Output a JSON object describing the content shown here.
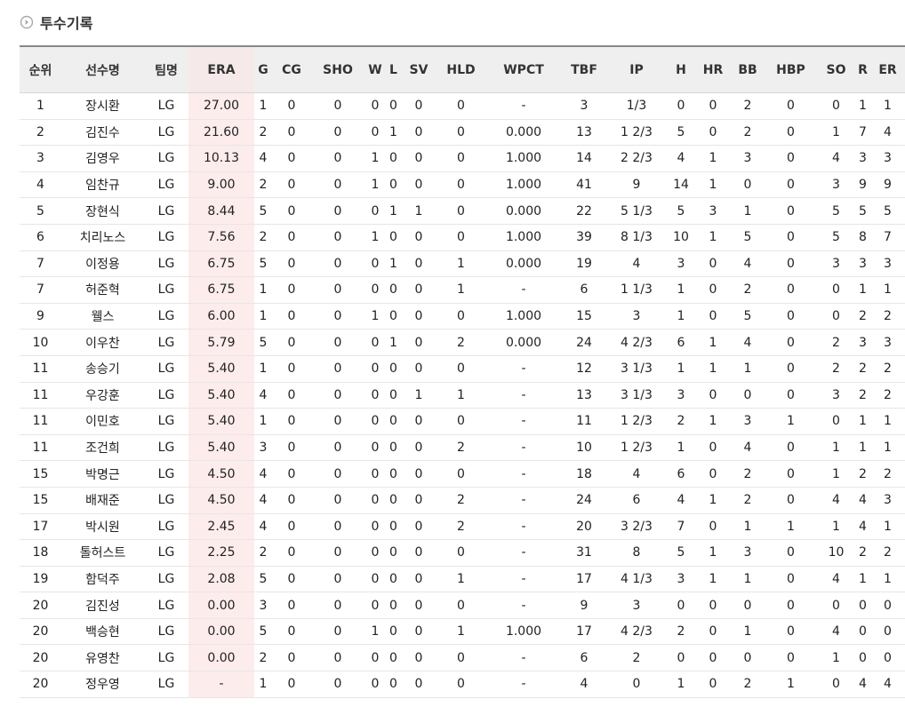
{
  "section_title": "투수기록",
  "table": {
    "columns": [
      "순위",
      "선수명",
      "팀명",
      "ERA",
      "G",
      "CG",
      "SHO",
      "W",
      "L",
      "SV",
      "HLD",
      "WPCT",
      "TBF",
      "IP",
      "H",
      "HR",
      "BB",
      "HBP",
      "SO",
      "R",
      "ER"
    ],
    "rows": [
      [
        "1",
        "장시환",
        "LG",
        "27.00",
        "1",
        "0",
        "0",
        "0",
        "0",
        "0",
        "0",
        "-",
        "3",
        "1/3",
        "0",
        "0",
        "2",
        "0",
        "0",
        "1",
        "1"
      ],
      [
        "2",
        "김진수",
        "LG",
        "21.60",
        "2",
        "0",
        "0",
        "0",
        "1",
        "0",
        "0",
        "0.000",
        "13",
        "1 2/3",
        "5",
        "0",
        "2",
        "0",
        "1",
        "7",
        "4"
      ],
      [
        "3",
        "김영우",
        "LG",
        "10.13",
        "4",
        "0",
        "0",
        "1",
        "0",
        "0",
        "0",
        "1.000",
        "14",
        "2 2/3",
        "4",
        "1",
        "3",
        "0",
        "4",
        "3",
        "3"
      ],
      [
        "4",
        "임찬규",
        "LG",
        "9.00",
        "2",
        "0",
        "0",
        "1",
        "0",
        "0",
        "0",
        "1.000",
        "41",
        "9",
        "14",
        "1",
        "0",
        "0",
        "3",
        "9",
        "9"
      ],
      [
        "5",
        "장현식",
        "LG",
        "8.44",
        "5",
        "0",
        "0",
        "0",
        "1",
        "1",
        "0",
        "0.000",
        "22",
        "5 1/3",
        "5",
        "3",
        "1",
        "0",
        "5",
        "5",
        "5"
      ],
      [
        "6",
        "치리노스",
        "LG",
        "7.56",
        "2",
        "0",
        "0",
        "1",
        "0",
        "0",
        "0",
        "1.000",
        "39",
        "8 1/3",
        "10",
        "1",
        "5",
        "0",
        "5",
        "8",
        "7"
      ],
      [
        "7",
        "이정용",
        "LG",
        "6.75",
        "5",
        "0",
        "0",
        "0",
        "1",
        "0",
        "1",
        "0.000",
        "19",
        "4",
        "3",
        "0",
        "4",
        "0",
        "3",
        "3",
        "3"
      ],
      [
        "7",
        "허준혁",
        "LG",
        "6.75",
        "1",
        "0",
        "0",
        "0",
        "0",
        "0",
        "1",
        "-",
        "6",
        "1 1/3",
        "1",
        "0",
        "2",
        "0",
        "0",
        "1",
        "1"
      ],
      [
        "9",
        "웰스",
        "LG",
        "6.00",
        "1",
        "0",
        "0",
        "1",
        "0",
        "0",
        "0",
        "1.000",
        "15",
        "3",
        "1",
        "0",
        "5",
        "0",
        "0",
        "2",
        "2"
      ],
      [
        "10",
        "이우찬",
        "LG",
        "5.79",
        "5",
        "0",
        "0",
        "0",
        "1",
        "0",
        "2",
        "0.000",
        "24",
        "4 2/3",
        "6",
        "1",
        "4",
        "0",
        "2",
        "3",
        "3"
      ],
      [
        "11",
        "송승기",
        "LG",
        "5.40",
        "1",
        "0",
        "0",
        "0",
        "0",
        "0",
        "0",
        "-",
        "12",
        "3 1/3",
        "1",
        "1",
        "1",
        "0",
        "2",
        "2",
        "2"
      ],
      [
        "11",
        "우강훈",
        "LG",
        "5.40",
        "4",
        "0",
        "0",
        "0",
        "0",
        "1",
        "1",
        "-",
        "13",
        "3 1/3",
        "3",
        "0",
        "0",
        "0",
        "3",
        "2",
        "2"
      ],
      [
        "11",
        "이민호",
        "LG",
        "5.40",
        "1",
        "0",
        "0",
        "0",
        "0",
        "0",
        "0",
        "-",
        "11",
        "1 2/3",
        "2",
        "1",
        "3",
        "1",
        "0",
        "1",
        "1"
      ],
      [
        "11",
        "조건희",
        "LG",
        "5.40",
        "3",
        "0",
        "0",
        "0",
        "0",
        "0",
        "2",
        "-",
        "10",
        "1 2/3",
        "1",
        "0",
        "4",
        "0",
        "1",
        "1",
        "1"
      ],
      [
        "15",
        "박명근",
        "LG",
        "4.50",
        "4",
        "0",
        "0",
        "0",
        "0",
        "0",
        "0",
        "-",
        "18",
        "4",
        "6",
        "0",
        "2",
        "0",
        "1",
        "2",
        "2"
      ],
      [
        "15",
        "배재준",
        "LG",
        "4.50",
        "4",
        "0",
        "0",
        "0",
        "0",
        "0",
        "2",
        "-",
        "24",
        "6",
        "4",
        "1",
        "2",
        "0",
        "4",
        "4",
        "3"
      ],
      [
        "17",
        "박시원",
        "LG",
        "2.45",
        "4",
        "0",
        "0",
        "0",
        "0",
        "0",
        "2",
        "-",
        "20",
        "3 2/3",
        "7",
        "0",
        "1",
        "1",
        "1",
        "4",
        "1"
      ],
      [
        "18",
        "톨허스트",
        "LG",
        "2.25",
        "2",
        "0",
        "0",
        "0",
        "0",
        "0",
        "0",
        "-",
        "31",
        "8",
        "5",
        "1",
        "3",
        "0",
        "10",
        "2",
        "2"
      ],
      [
        "19",
        "함덕주",
        "LG",
        "2.08",
        "5",
        "0",
        "0",
        "0",
        "0",
        "0",
        "1",
        "-",
        "17",
        "4 1/3",
        "3",
        "1",
        "1",
        "0",
        "4",
        "1",
        "1"
      ],
      [
        "20",
        "김진성",
        "LG",
        "0.00",
        "3",
        "0",
        "0",
        "0",
        "0",
        "0",
        "0",
        "-",
        "9",
        "3",
        "0",
        "0",
        "0",
        "0",
        "0",
        "0",
        "0"
      ],
      [
        "20",
        "백승현",
        "LG",
        "0.00",
        "5",
        "0",
        "0",
        "1",
        "0",
        "0",
        "1",
        "1.000",
        "17",
        "4 2/3",
        "2",
        "0",
        "1",
        "0",
        "4",
        "0",
        "0"
      ],
      [
        "20",
        "유영찬",
        "LG",
        "0.00",
        "2",
        "0",
        "0",
        "0",
        "0",
        "0",
        "0",
        "-",
        "6",
        "2",
        "0",
        "0",
        "0",
        "0",
        "1",
        "0",
        "0"
      ],
      [
        "20",
        "정우영",
        "LG",
        "-",
        "1",
        "0",
        "0",
        "0",
        "0",
        "0",
        "0",
        "-",
        "4",
        "0",
        "1",
        "0",
        "2",
        "1",
        "0",
        "4",
        "4"
      ]
    ]
  }
}
